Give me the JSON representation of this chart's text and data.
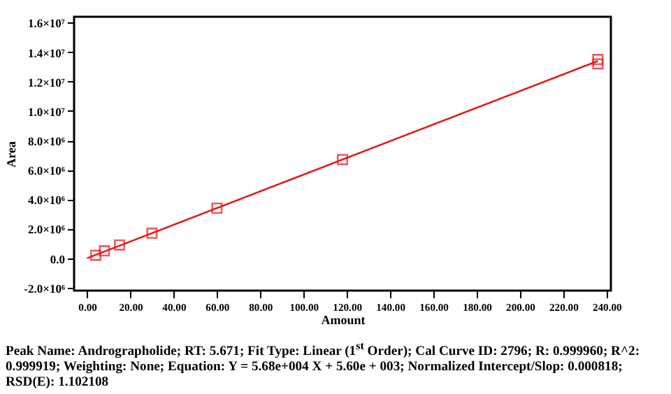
{
  "chart_data": {
    "type": "scatter",
    "xlabel": "Amount",
    "ylabel": "Area",
    "xlim": [
      -6,
      242
    ],
    "ylim": [
      -2200000,
      16400000
    ],
    "xticks": [
      {
        "value": 0,
        "label": "0.00"
      },
      {
        "value": 20,
        "label": "20.00"
      },
      {
        "value": 40,
        "label": "40.00"
      },
      {
        "value": 60,
        "label": "60.00"
      },
      {
        "value": 80,
        "label": "80.00"
      },
      {
        "value": 100,
        "label": "100.00"
      },
      {
        "value": 120,
        "label": "120.00"
      },
      {
        "value": 140,
        "label": "140.00"
      },
      {
        "value": 160,
        "label": "160.00"
      },
      {
        "value": 180,
        "label": "180.00"
      },
      {
        "value": 200,
        "label": "200.00"
      },
      {
        "value": 220,
        "label": "220.00"
      },
      {
        "value": 240,
        "label": "240.00"
      }
    ],
    "yticks": [
      {
        "value": -2000000,
        "label": "-2.0×10⁶"
      },
      {
        "value": 0,
        "label": "0.0"
      },
      {
        "value": 2000000,
        "label": "2.0×10⁶"
      },
      {
        "value": 4000000,
        "label": "4.0×10⁶"
      },
      {
        "value": 6000000,
        "label": "6.0×10⁶"
      },
      {
        "value": 8000000,
        "label": "8.0×10⁶"
      },
      {
        "value": 10000000,
        "label": "1.0×10⁷"
      },
      {
        "value": 12000000,
        "label": "1.2×10⁷"
      },
      {
        "value": 14000000,
        "label": "1.4×10⁷"
      },
      {
        "value": 16000000,
        "label": "1.6×10⁷"
      }
    ],
    "grid": false,
    "series": [
      {
        "marker": "square",
        "color": "#e31a1c",
        "x": [
          4,
          8,
          15,
          30,
          60,
          118,
          236,
          236
        ],
        "values": [
          200000,
          500000,
          900000,
          1700000,
          3400000,
          6700000,
          13200000,
          13500000
        ]
      },
      {
        "type": "line",
        "marker": "none",
        "line_style": "solid",
        "color": "#e31a1c",
        "x": [
          0,
          236
        ],
        "values": [
          0,
          13400000
        ]
      }
    ],
    "annotations": [
      "Peak Name: Andrographolide; RT: 5.671; Fit Type: Linear (1$^{st}$ Order); Cal Curve ID: 2796; R: 0.999960; R^2: 0.999919; Weighting: None; Equation: Y = 5.68e+004 X + 5.60e + 003; Normalized Intercept/Slop: 0.000818; RSD(E): 1.102108"
    ]
  }
}
